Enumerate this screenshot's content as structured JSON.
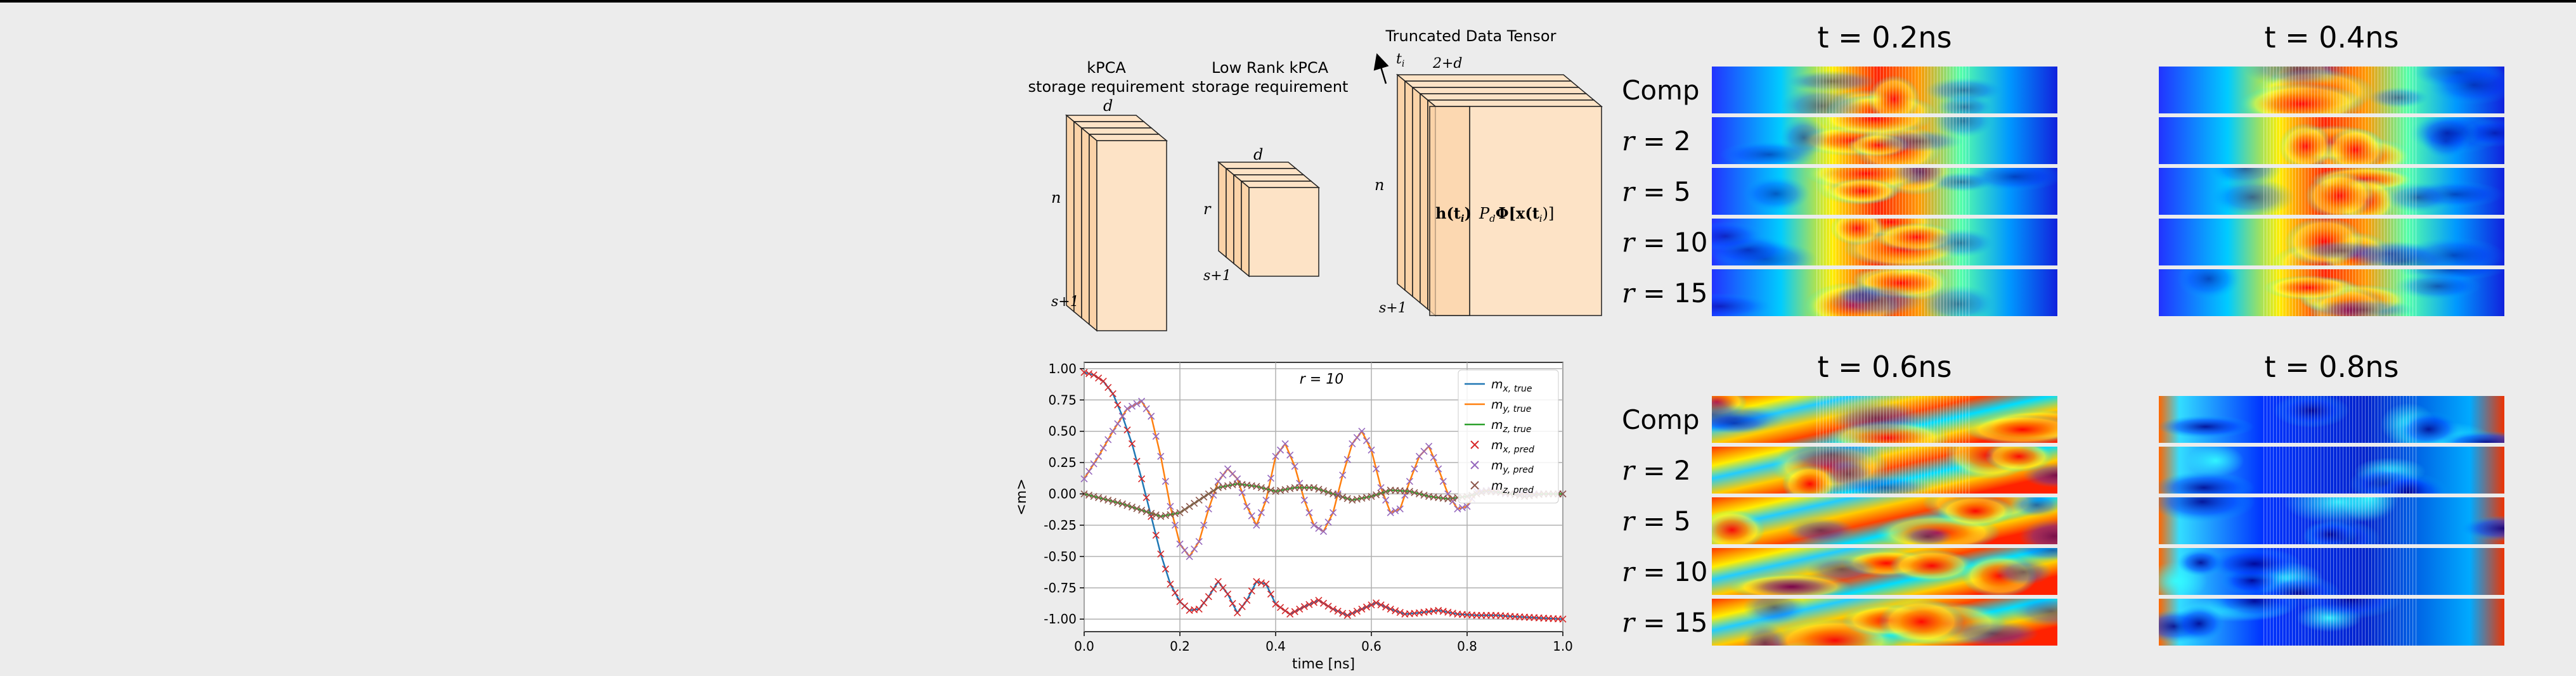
{
  "diagram": {
    "kpca": {
      "title_line1": "kPCA",
      "title_line2": "storage requirement",
      "n": "n",
      "d": "d",
      "s1": "s+1"
    },
    "lowrank": {
      "title_line1": "Low Rank kPCA",
      "title_line2": "storage requirement",
      "r": "r",
      "d": "d",
      "s1": "s+1"
    },
    "truncated": {
      "title": "Truncated Data Tensor",
      "ti": "t",
      "ti_sub": "i",
      "top": "2+d",
      "n": "n",
      "s1": "s+1",
      "h_label": "h(t",
      "h_sub": "i",
      "h_close": ")",
      "p_label": "P",
      "p_sub": "d",
      "p_phi": "Φ[x(t",
      "p_close": ")]"
    },
    "colors": {
      "face": "#fde3c6",
      "face_dark": "#fbd3a8",
      "edge": "#222222"
    }
  },
  "chart_data": {
    "type": "line",
    "annotation": "r = 10",
    "xlabel": "time [ns]",
    "ylabel": "<m>",
    "xlim": [
      0.0,
      1.0
    ],
    "ylim": [
      -1.1,
      1.05
    ],
    "xticks": [
      "0.0",
      "0.2",
      "0.4",
      "0.6",
      "0.8",
      "1.0"
    ],
    "yticks": [
      "1.00",
      "0.75",
      "0.50",
      "0.25",
      "0.00",
      "-0.25",
      "-0.50",
      "-0.75",
      "-1.00"
    ],
    "ytick_values": [
      1.0,
      0.75,
      0.5,
      0.25,
      0.0,
      -0.25,
      -0.5,
      -0.75,
      -1.0
    ],
    "xtick_values": [
      0.0,
      0.2,
      0.4,
      0.6,
      0.8,
      1.0
    ],
    "grid": true,
    "legend_placement": "top-right",
    "legend": [
      {
        "label": "m",
        "sub": "x, true",
        "kind": "line",
        "color": "#1f77b4"
      },
      {
        "label": "m",
        "sub": "y, true",
        "kind": "line",
        "color": "#ff7f0e"
      },
      {
        "label": "m",
        "sub": "z, true",
        "kind": "line",
        "color": "#2ca02c"
      },
      {
        "label": "m",
        "sub": "x, pred",
        "kind": "cross",
        "color": "#d62728"
      },
      {
        "label": "m",
        "sub": "y, pred",
        "kind": "cross",
        "color": "#9467bd"
      },
      {
        "label": "m",
        "sub": "z, pred",
        "kind": "cross",
        "color": "#8c564b"
      }
    ],
    "series": [
      {
        "name": "m_x,true",
        "color": "#1f77b4",
        "x": [
          0.0,
          0.02,
          0.04,
          0.06,
          0.08,
          0.1,
          0.12,
          0.14,
          0.16,
          0.18,
          0.2,
          0.22,
          0.24,
          0.26,
          0.28,
          0.3,
          0.32,
          0.34,
          0.36,
          0.38,
          0.4,
          0.43,
          0.46,
          0.49,
          0.52,
          0.55,
          0.58,
          0.61,
          0.64,
          0.67,
          0.7,
          0.74,
          0.78,
          0.82,
          0.86,
          0.9,
          0.95,
          1.0
        ],
        "y": [
          0.97,
          0.95,
          0.9,
          0.8,
          0.62,
          0.4,
          0.12,
          -0.18,
          -0.48,
          -0.72,
          -0.86,
          -0.93,
          -0.92,
          -0.82,
          -0.7,
          -0.8,
          -0.95,
          -0.85,
          -0.7,
          -0.72,
          -0.88,
          -0.96,
          -0.9,
          -0.85,
          -0.92,
          -0.97,
          -0.92,
          -0.87,
          -0.92,
          -0.96,
          -0.95,
          -0.93,
          -0.96,
          -0.97,
          -0.97,
          -0.98,
          -0.99,
          -1.0
        ]
      },
      {
        "name": "m_y,true",
        "color": "#ff7f0e",
        "x": [
          0.0,
          0.03,
          0.06,
          0.09,
          0.12,
          0.14,
          0.16,
          0.18,
          0.2,
          0.22,
          0.24,
          0.26,
          0.28,
          0.3,
          0.32,
          0.34,
          0.36,
          0.38,
          0.4,
          0.42,
          0.44,
          0.46,
          0.48,
          0.5,
          0.52,
          0.54,
          0.56,
          0.58,
          0.6,
          0.62,
          0.64,
          0.66,
          0.68,
          0.7,
          0.72,
          0.74,
          0.76,
          0.78,
          0.8,
          0.82,
          0.85,
          0.88,
          0.92,
          0.96,
          1.0
        ],
        "y": [
          0.12,
          0.3,
          0.5,
          0.68,
          0.74,
          0.62,
          0.3,
          -0.1,
          -0.4,
          -0.5,
          -0.38,
          -0.12,
          0.1,
          0.2,
          0.12,
          -0.1,
          -0.25,
          -0.05,
          0.3,
          0.4,
          0.22,
          -0.05,
          -0.25,
          -0.3,
          -0.15,
          0.15,
          0.4,
          0.5,
          0.35,
          0.05,
          -0.15,
          -0.12,
          0.1,
          0.3,
          0.38,
          0.2,
          0.0,
          -0.12,
          -0.1,
          0.02,
          0.03,
          0.0,
          0.0,
          0.0,
          0.0
        ]
      },
      {
        "name": "m_z,true",
        "color": "#2ca02c",
        "x": [
          0.0,
          0.04,
          0.08,
          0.12,
          0.16,
          0.2,
          0.24,
          0.28,
          0.32,
          0.36,
          0.4,
          0.44,
          0.48,
          0.52,
          0.56,
          0.6,
          0.64,
          0.68,
          0.72,
          0.76,
          0.8,
          0.84,
          0.88,
          0.92,
          0.96,
          1.0
        ],
        "y": [
          0.0,
          -0.04,
          -0.08,
          -0.13,
          -0.18,
          -0.15,
          -0.05,
          0.05,
          0.08,
          0.06,
          0.02,
          0.05,
          0.05,
          0.0,
          -0.05,
          -0.02,
          0.03,
          0.02,
          -0.02,
          -0.04,
          -0.02,
          0.02,
          0.01,
          -0.02,
          0.0,
          0.0
        ]
      }
    ]
  },
  "snapshots": {
    "row_labels": [
      "Comp",
      "r = 2",
      "r = 5",
      "r = 10",
      "r = 15"
    ],
    "panels": [
      {
        "title": "t = 0.2ns",
        "pattern": "band-center"
      },
      {
        "title": "t = 0.4ns",
        "pattern": "band-center"
      },
      {
        "title": "t = 0.6ns",
        "pattern": "diagonal"
      },
      {
        "title": "t = 0.8ns",
        "pattern": "cool"
      }
    ]
  }
}
